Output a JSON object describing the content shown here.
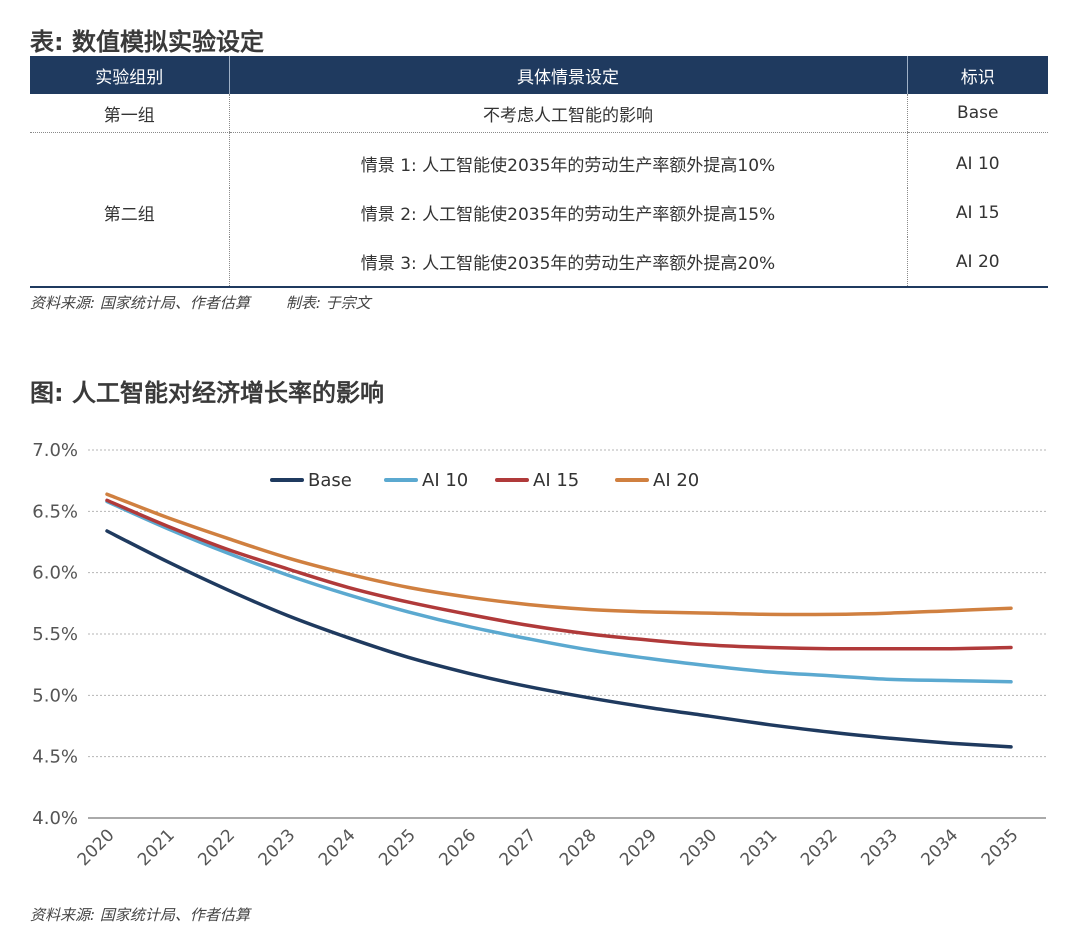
{
  "table": {
    "title": "表: 数值模拟实验设定",
    "headers": [
      "实验组别",
      "具体情景设定",
      "标识"
    ],
    "groups": [
      {
        "name": "第一组",
        "rows": [
          {
            "scenario": "不考虑人工智能的影响",
            "id": "Base"
          }
        ]
      },
      {
        "name": "第二组",
        "rows": [
          {
            "scenario": "情景 1: 人工智能使2035年的劳动生产率额外提高10%",
            "id": "AI 10"
          },
          {
            "scenario": "情景 2: 人工智能使2035年的劳动生产率额外提高15%",
            "id": "AI 15"
          },
          {
            "scenario": "情景 3: 人工智能使2035年的劳动生产率额外提高20%",
            "id": "AI 20"
          }
        ]
      }
    ],
    "source": "资料来源: 国家统计局、作者估算",
    "maker": "制表: 于宗文"
  },
  "chart_title": "图: 人工智能对经济增长率的影响",
  "chart_source": "资料来源: 国家统计局、作者估算",
  "chart_data": {
    "type": "line",
    "title": "图: 人工智能对经济增长率的影响",
    "xlabel": "",
    "ylabel": "",
    "x": [
      "2020",
      "2021",
      "2022",
      "2023",
      "2024",
      "2025",
      "2026",
      "2027",
      "2028",
      "2029",
      "2030",
      "2031",
      "2032",
      "2033",
      "2034",
      "2035"
    ],
    "ylim": [
      4.0,
      7.0
    ],
    "yticks": [
      "4.0%",
      "4.5%",
      "5.0%",
      "5.5%",
      "6.0%",
      "6.5%",
      "7.0%"
    ],
    "grid": true,
    "legend_position": "top",
    "series": [
      {
        "name": "Base",
        "color": "#1f3a5f",
        "values": [
          6.34,
          6.09,
          5.86,
          5.65,
          5.47,
          5.31,
          5.18,
          5.07,
          4.98,
          4.9,
          4.83,
          4.76,
          4.7,
          4.65,
          4.61,
          4.58
        ]
      },
      {
        "name": "AI 10",
        "color": "#5ba9d0",
        "values": [
          6.58,
          6.36,
          6.16,
          5.98,
          5.82,
          5.68,
          5.56,
          5.46,
          5.37,
          5.3,
          5.24,
          5.19,
          5.16,
          5.13,
          5.12,
          5.11
        ]
      },
      {
        "name": "AI 15",
        "color": "#b03a3a",
        "values": [
          6.59,
          6.38,
          6.19,
          6.03,
          5.88,
          5.76,
          5.66,
          5.57,
          5.5,
          5.45,
          5.41,
          5.39,
          5.38,
          5.38,
          5.38,
          5.39
        ]
      },
      {
        "name": "AI 20",
        "color": "#d08040",
        "values": [
          6.64,
          6.45,
          6.28,
          6.12,
          5.99,
          5.88,
          5.8,
          5.74,
          5.7,
          5.68,
          5.67,
          5.66,
          5.66,
          5.67,
          5.69,
          5.71
        ]
      }
    ]
  }
}
